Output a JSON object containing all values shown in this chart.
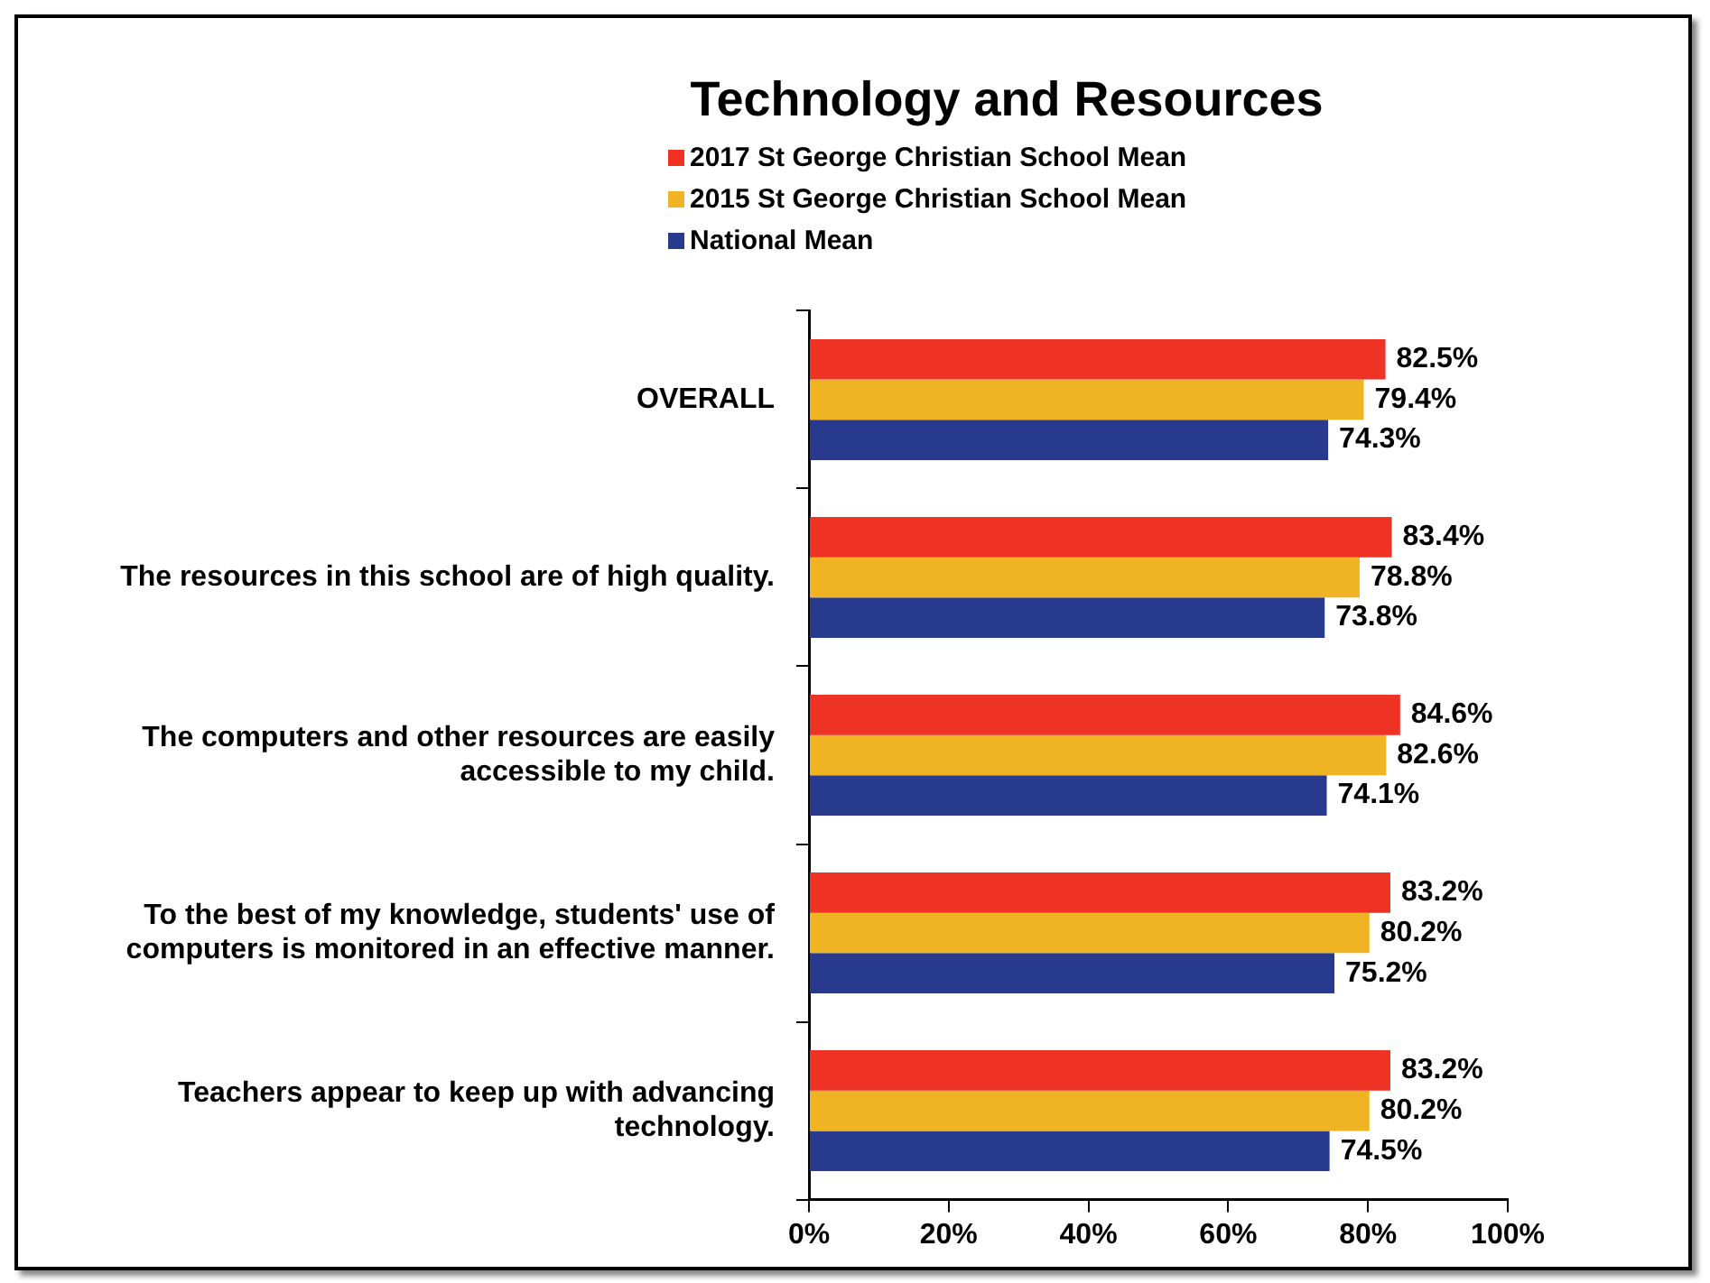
{
  "chart_data": {
    "type": "bar",
    "orientation": "horizontal",
    "title": "Technology and Resources",
    "categories": [
      "OVERALL",
      "The resources in this school are of high quality.",
      "The computers and other resources are easily accessible to my child.",
      "To the best of my knowledge, students' use of computers is monitored in an effective manner.",
      "Teachers appear to keep up with advancing technology."
    ],
    "series": [
      {
        "name": "2017 St George Christian School Mean",
        "color": "#ee3224",
        "values": [
          82.5,
          83.4,
          84.6,
          83.2,
          83.2
        ],
        "value_labels": [
          "82.5%",
          "83.4%",
          "84.6%",
          "83.2%",
          "83.2%"
        ]
      },
      {
        "name": "2015 St George Christian School Mean",
        "color": "#f0b323",
        "values": [
          79.4,
          78.8,
          82.6,
          80.2,
          80.2
        ],
        "value_labels": [
          "79.4%",
          "78.8%",
          "82.6%",
          "80.2%",
          "80.2%"
        ]
      },
      {
        "name": "National Mean",
        "color": "#283a8e",
        "values": [
          74.3,
          73.8,
          74.1,
          75.2,
          74.5
        ],
        "value_labels": [
          "74.3%",
          "73.8%",
          "74.1%",
          "75.2%",
          "74.5%"
        ]
      }
    ],
    "xlim": [
      0,
      100
    ],
    "xticks": [
      {
        "value": 0,
        "label": "0%"
      },
      {
        "value": 20,
        "label": "20%"
      },
      {
        "value": 40,
        "label": "40%"
      },
      {
        "value": 60,
        "label": "60%"
      },
      {
        "value": 80,
        "label": "80%"
      },
      {
        "value": 100,
        "label": "100%"
      }
    ],
    "grid": false,
    "legend": "top left"
  }
}
